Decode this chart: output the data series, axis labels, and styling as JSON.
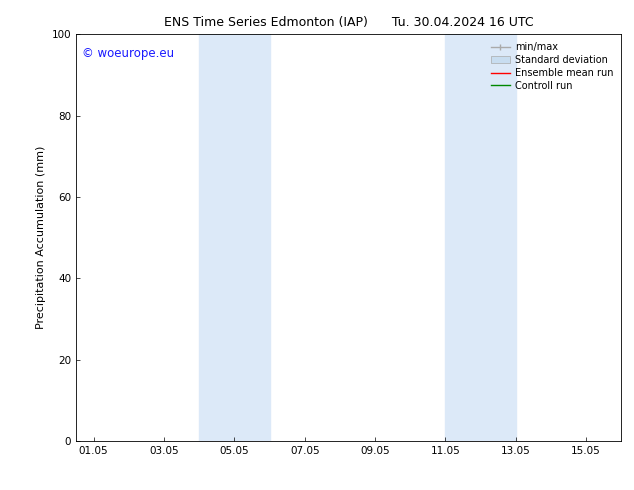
{
  "title_left": "ENS Time Series Edmonton (IAP)",
  "title_right": "Tu. 30.04.2024 16 UTC",
  "ylabel": "Precipitation Accumulation (mm)",
  "ylim": [
    0,
    100
  ],
  "yticks": [
    0,
    20,
    40,
    60,
    80,
    100
  ],
  "xlim": [
    0.5,
    16.0
  ],
  "xtick_labels": [
    "01.05",
    "03.05",
    "05.05",
    "07.05",
    "09.05",
    "11.05",
    "13.05",
    "15.05"
  ],
  "xtick_positions": [
    1.0,
    3.0,
    5.0,
    7.0,
    9.0,
    11.0,
    13.0,
    15.0
  ],
  "shaded_bands": [
    {
      "x_start": 4.0,
      "x_end": 6.0,
      "color": "#dce9f8"
    },
    {
      "x_start": 11.0,
      "x_end": 13.0,
      "color": "#dce9f8"
    }
  ],
  "watermark_text": "© woeurope.eu",
  "watermark_color": "#1a1aff",
  "watermark_fontsize": 8.5,
  "background_color": "#ffffff",
  "title_fontsize": 9,
  "axis_label_fontsize": 8,
  "tick_fontsize": 7.5,
  "legend_fontsize": 7,
  "legend_color_minmax": "#aaaaaa",
  "legend_color_stddev": "#c8ddf0",
  "legend_color_ensemble": "#ff0000",
  "legend_color_control": "#008800"
}
